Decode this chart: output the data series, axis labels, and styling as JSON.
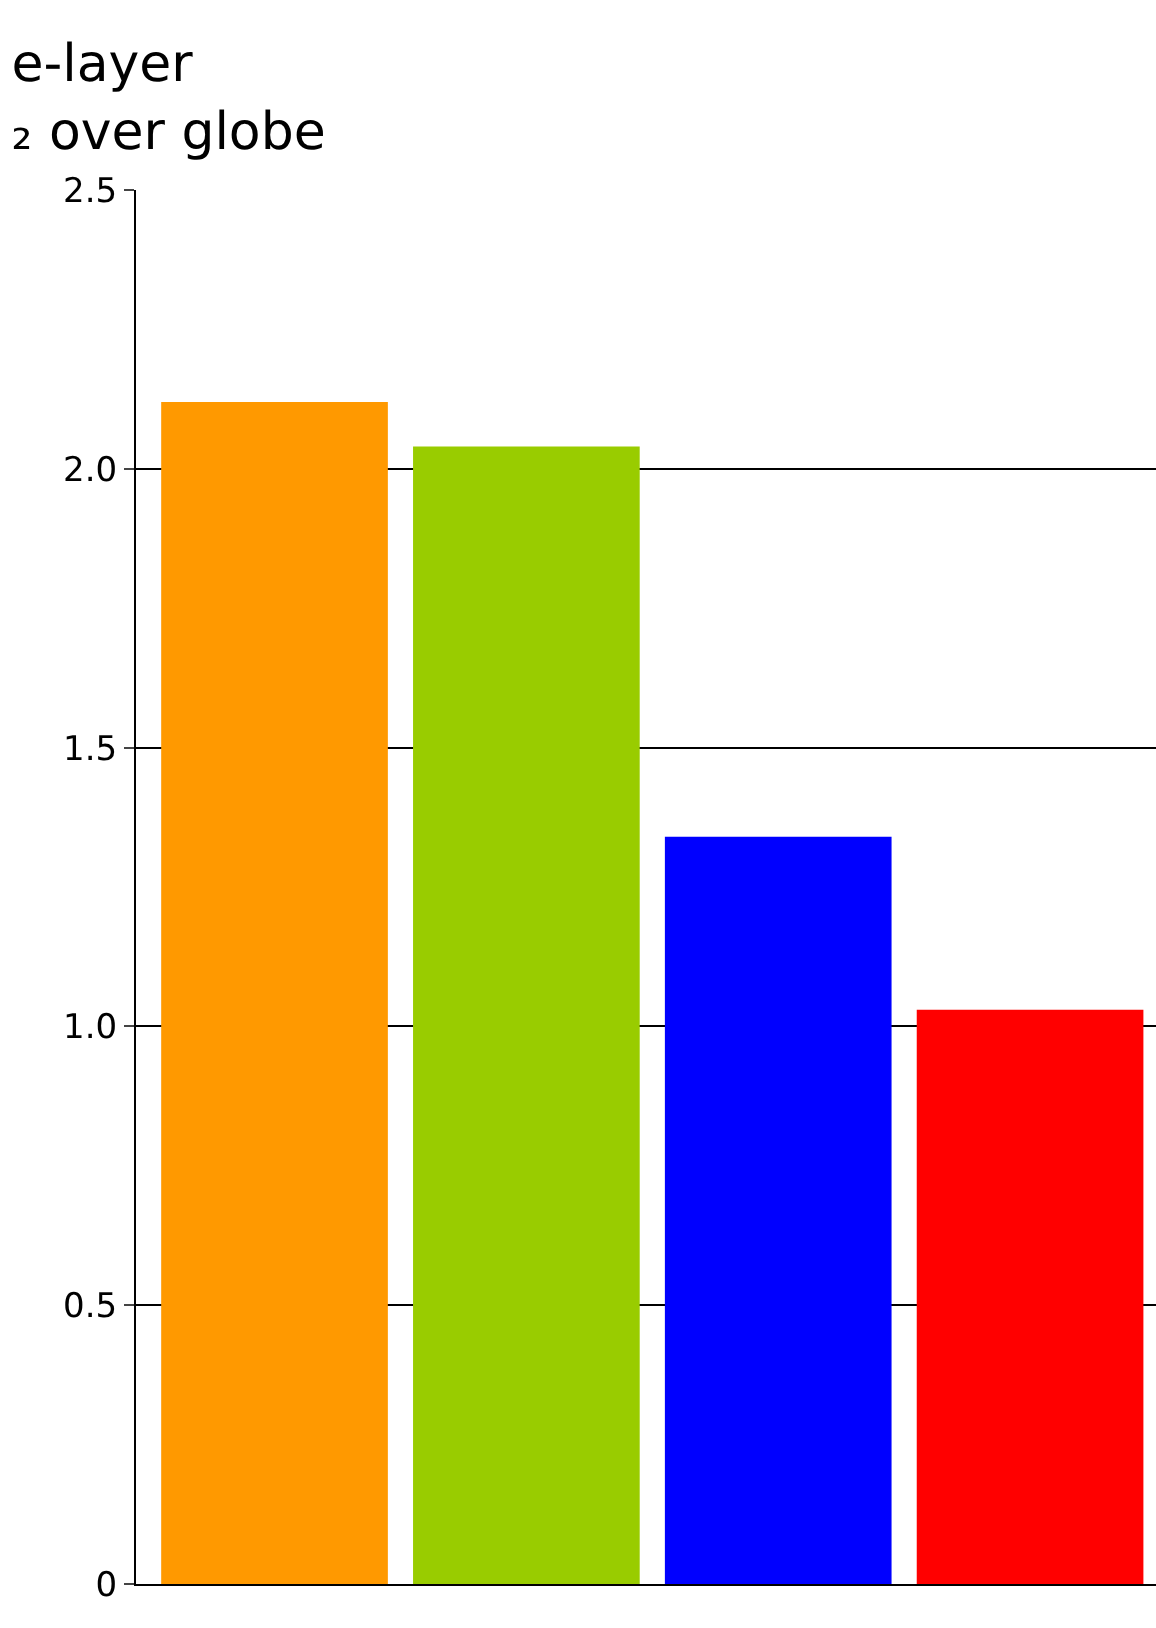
{
  "chart_data": {
    "type": "bar",
    "title": "e-layer\n₂ over globe",
    "categories": [
      null,
      null,
      null,
      null
    ],
    "colors": [
      "#ff9900",
      "#99cc00",
      "#0000ff",
      "#ff0000"
    ],
    "values": [
      2.12,
      2.04,
      1.34,
      1.03
    ],
    "ylim": [
      0,
      2.5
    ],
    "yticks": [
      0,
      0.5,
      {
        "value": 1,
        "label": "1.0"
      },
      1.5,
      {
        "value": 2,
        "label": "2.0"
      },
      2.5
    ],
    "grid": "y"
  }
}
